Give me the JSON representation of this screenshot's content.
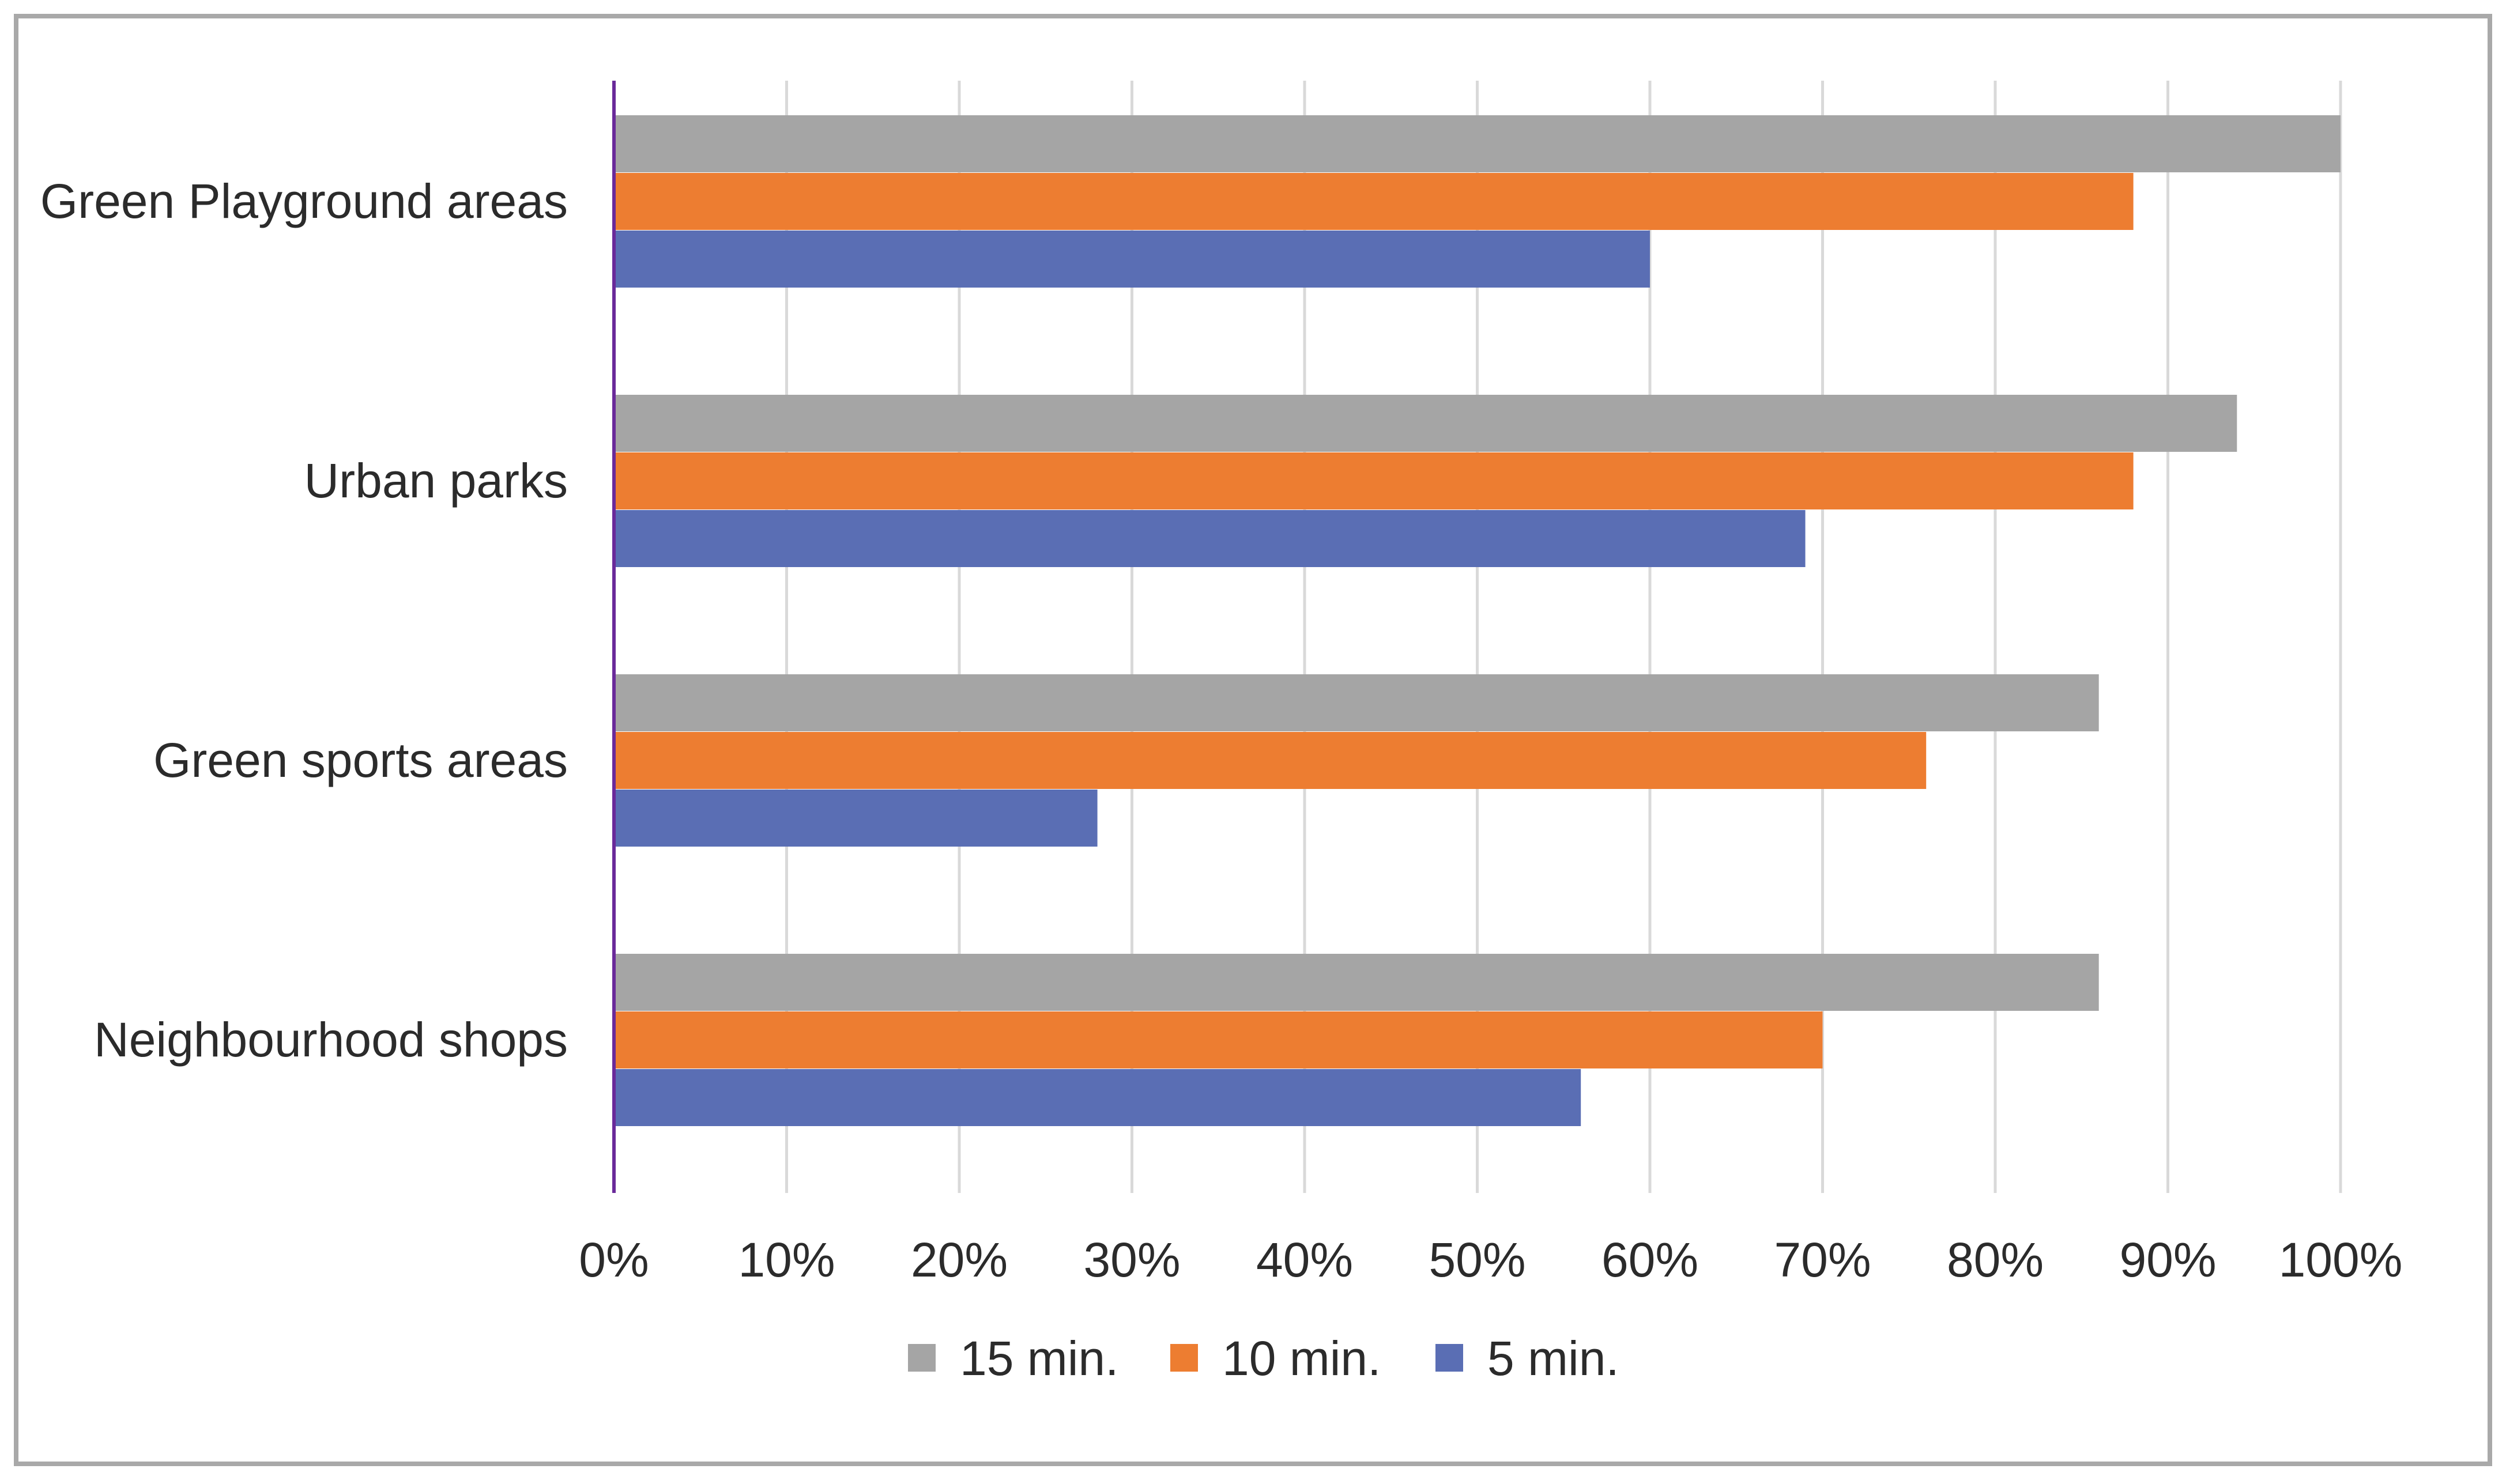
{
  "chart_data": {
    "type": "bar",
    "orientation": "horizontal",
    "title": "",
    "xlabel": "",
    "ylabel": "",
    "xlim": [
      0,
      100
    ],
    "tick_step": 10,
    "tick_format": "percent",
    "grid": true,
    "legend_position": "bottom",
    "categories": [
      "Green Playground areas",
      "Urban parks",
      "Green sports areas",
      "Neighbourhood shops"
    ],
    "x_tick_labels": [
      "0%",
      "10%",
      "20%",
      "30%",
      "40%",
      "50%",
      "60%",
      "70%",
      "80%",
      "90%",
      "100%"
    ],
    "series": [
      {
        "name": "15 min.",
        "color": "#a5a5a5",
        "values": [
          100,
          94,
          86,
          86
        ]
      },
      {
        "name": "10 min.",
        "color": "#ed7d31",
        "values": [
          88,
          88,
          76,
          70
        ]
      },
      {
        "name": "5 min.",
        "color": "#5a6eb4",
        "values": [
          60,
          69,
          28,
          56
        ]
      }
    ],
    "colors": {
      "frame": "#a9a9a9",
      "grid": "#d9d9d9",
      "axis": "#6a2a9a"
    }
  }
}
